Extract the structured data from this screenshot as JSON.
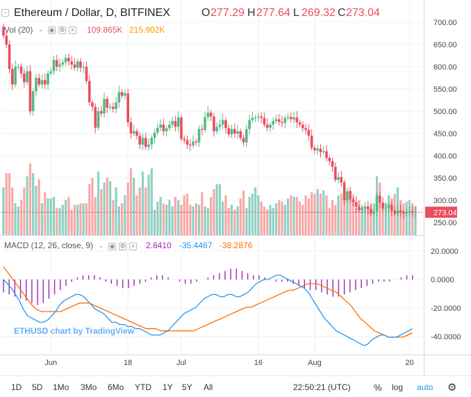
{
  "header": {
    "symbol_title": "Ethereum / Dollar, D, BITFINEX",
    "open_label": "O",
    "open_value": "277.29",
    "high_label": "H",
    "high_value": "277.64",
    "low_label": "L",
    "low_value": "269.32",
    "close_label": "C",
    "close_value": "273.04"
  },
  "volume_legend": {
    "label": "Vol (20)",
    "value1": "109.865K",
    "value2": "215.902K"
  },
  "macd_legend": {
    "label": "MACD (12, 26, close, 9)",
    "hist": "2.8410",
    "macd": "-35.4467",
    "signal": "-38.2876"
  },
  "watermark": "ETHUSD chart by TradingView",
  "price_axis": [
    "700.00",
    "650.00",
    "600.00",
    "550.00",
    "500.00",
    "450.00",
    "400.00",
    "350.00",
    "300.00",
    "250.00"
  ],
  "last_price_tag": "273.04",
  "macd_axis": [
    "20.0000",
    "0.0000",
    "-20.0000",
    "-40.0000"
  ],
  "time_axis": [
    "Jun",
    "18",
    "Jul",
    "16",
    "Aug",
    "20"
  ],
  "toolbar": {
    "ranges": [
      "1D",
      "5D",
      "1Mo",
      "3Mo",
      "6Mo",
      "YTD",
      "1Y",
      "5Y",
      "All"
    ],
    "clock": "22:50:21 (UTC)",
    "percent": "%",
    "log": "log",
    "auto": "auto"
  },
  "colors": {
    "up": "#53b987",
    "down": "#eb4d5c",
    "up_vol": "#8fd0c4",
    "down_vol": "#f7a9a7",
    "macd_line": "#2196f3",
    "signal_line": "#ff6d00",
    "hist": "#9c27b0",
    "accent": "#2196f3"
  },
  "chart_data": [
    {
      "type": "candlestick",
      "title": "Ethereum / Dollar, D, BITFINEX",
      "ylim": [
        230,
        720
      ],
      "x_ticks": [
        {
          "label": "Jun",
          "index": 16
        },
        {
          "label": "18",
          "index": 42
        },
        {
          "label": "Jul",
          "index": 60
        },
        {
          "label": "16",
          "index": 86
        },
        {
          "label": "Aug",
          "index": 105
        },
        {
          "label": "20",
          "index": 137
        }
      ],
      "close": [
        670,
        650,
        595,
        560,
        600,
        600,
        585,
        565,
        590,
        500,
        545,
        575,
        560,
        570,
        560,
        585,
        590,
        615,
        600,
        605,
        610,
        620,
        612,
        605,
        598,
        612,
        598,
        600,
        568,
        520,
        510,
        463,
        500,
        495,
        528,
        508,
        510,
        505,
        520,
        543,
        535,
        540,
        475,
        450,
        455,
        445,
        425,
        440,
        420,
        425,
        440,
        452,
        463,
        470,
        455,
        462,
        470,
        478,
        465,
        486,
        438,
        435,
        425,
        423,
        432,
        430,
        460,
        458,
        487,
        497,
        488,
        455,
        465,
        470,
        480,
        462,
        448,
        460,
        450,
        455,
        440,
        430,
        460,
        480,
        485,
        486,
        488,
        485,
        470,
        463,
        470,
        478,
        482,
        476,
        474,
        485,
        487,
        482,
        486,
        475,
        470,
        462,
        458,
        445,
        418,
        412,
        416,
        408,
        410,
        395,
        388,
        375,
        346,
        352,
        340,
        300,
        320,
        302,
        296,
        285,
        278,
        282,
        286,
        280,
        270,
        275,
        310,
        295,
        282,
        282,
        290,
        276,
        270,
        277,
        273,
        270,
        273,
        275,
        273,
        273
      ],
      "volume_k": [
        150,
        195,
        195,
        150,
        100,
        90,
        110,
        150,
        185,
        225,
        195,
        155,
        175,
        100,
        135,
        115,
        115,
        120,
        85,
        85,
        95,
        110,
        120,
        80,
        95,
        95,
        100,
        100,
        100,
        160,
        180,
        120,
        200,
        145,
        165,
        180,
        170,
        110,
        150,
        90,
        100,
        125,
        165,
        210,
        180,
        125,
        150,
        200,
        150,
        190,
        210,
        80,
        105,
        120,
        100,
        95,
        110,
        90,
        120,
        110,
        95,
        125,
        130,
        95,
        90,
        100,
        95,
        135,
        90,
        85,
        120,
        145,
        160,
        160,
        105,
        125,
        85,
        95,
        80,
        90,
        115,
        140,
        85,
        120,
        130,
        150,
        125,
        105,
        90,
        80,
        95,
        85,
        100,
        110,
        105,
        95,
        115,
        125,
        120,
        120,
        105,
        95,
        125,
        115,
        135,
        130,
        145,
        130,
        140,
        125,
        85,
        110,
        95,
        125,
        130,
        120,
        135,
        140,
        120,
        85,
        110,
        90,
        90,
        90,
        95,
        100,
        185,
        165,
        100,
        100,
        125,
        115,
        130,
        150,
        110,
        100,
        105,
        110,
        100,
        90
      ],
      "macd": [
        0.0,
        -3.0,
        -6.0,
        -10.5,
        -15.0,
        -21.0,
        -25.5,
        -27.0,
        -28.5,
        -30.0,
        -30.0,
        -28.5,
        -25.5,
        -22.5,
        -18.0,
        -15.0,
        -13.5,
        -12.0,
        -10.5,
        -10.5,
        -12.0,
        -15.0,
        -18.0,
        -21.0,
        -22.5,
        -24.0,
        -27.0,
        -30.0,
        -30.0,
        -31.5,
        -31.5,
        -33.0,
        -33.0,
        -34.5,
        -34.5,
        -36.0,
        -37.5,
        -39.0,
        -39.0,
        -39.0,
        -37.5,
        -36.0,
        -33.0,
        -30.0,
        -27.0,
        -24.0,
        -22.5,
        -21.0,
        -19.5,
        -16.5,
        -13.5,
        -12.0,
        -10.5,
        -10.5,
        -12.0,
        -12.0,
        -10.5,
        -10.5,
        -12.0,
        -12.0,
        -10.5,
        -9.0,
        -6.0,
        -3.0,
        -1.5,
        0.0,
        0.0,
        1.5,
        3.0,
        3.0,
        1.5,
        0.0,
        -1.5,
        -3.0,
        -4.5,
        -6.0,
        -9.0,
        -13.5,
        -18.0,
        -22.5,
        -27.0,
        -30.0,
        -33.0,
        -36.0,
        -37.5,
        -39.0,
        -40.5,
        -42.0,
        -43.5,
        -45.0,
        -46.5,
        -45.0,
        -42.0,
        -40.5,
        -39.0,
        -39.0,
        -40.5,
        -40.5,
        -40.5,
        -39.0,
        -37.5,
        -36.0,
        -34.5
      ],
      "signal": [
        9.0,
        4.5,
        0.0,
        -4.5,
        -9.0,
        -13.5,
        -18.0,
        -21.0,
        -22.5,
        -22.5,
        -22.5,
        -22.5,
        -22.5,
        -21.0,
        -19.5,
        -18.0,
        -16.5,
        -16.5,
        -16.5,
        -18.0,
        -19.5,
        -21.0,
        -22.5,
        -24.0,
        -25.5,
        -27.0,
        -28.5,
        -30.0,
        -31.5,
        -33.0,
        -34.5,
        -34.5,
        -34.5,
        -36.0,
        -36.0,
        -36.0,
        -36.0,
        -36.0,
        -36.0,
        -36.0,
        -36.0,
        -34.5,
        -33.0,
        -31.5,
        -30.0,
        -28.5,
        -27.0,
        -25.5,
        -24.0,
        -22.5,
        -21.0,
        -19.5,
        -19.5,
        -18.0,
        -16.5,
        -15.0,
        -13.5,
        -12.0,
        -10.5,
        -9.0,
        -7.5,
        -7.5,
        -6.0,
        -4.5,
        -3.0,
        -3.0,
        -3.0,
        -4.5,
        -6.0,
        -7.5,
        -9.0,
        -12.0,
        -15.0,
        -18.0,
        -22.5,
        -27.0,
        -30.0,
        -33.0,
        -36.0,
        -37.5,
        -39.0,
        -40.5,
        -40.5,
        -40.5,
        -40.5,
        -39.0,
        -37.5
      ],
      "hist": [
        -9.0,
        -10.5,
        -12.0,
        -13.5,
        -15.0,
        -16.5,
        -18.0,
        -16.5,
        -13.5,
        -10.5,
        -7.5,
        -4.5,
        -1.5,
        1.5,
        3.0,
        3.0,
        3.0,
        1.5,
        -1.5,
        -3.0,
        -4.5,
        -6.0,
        -6.0,
        -4.5,
        -3.0,
        -1.5,
        1.5,
        3.0,
        3.0,
        1.5,
        0.0,
        -1.5,
        -3.0,
        -3.0,
        -1.5,
        0.0,
        1.5,
        3.0,
        4.5,
        6.0,
        7.5,
        7.5,
        6.0,
        4.5,
        3.0,
        3.0,
        1.5,
        0.0,
        -1.5,
        -1.5,
        -1.5,
        -3.0,
        -4.5,
        -6.0,
        -7.5,
        -7.5,
        -9.0,
        -10.5,
        -12.0,
        -12.0,
        -10.5,
        -9.0,
        -7.5,
        -6.0,
        -4.5,
        -3.0,
        -1.5,
        -1.5,
        -1.5,
        0.0,
        1.5,
        3.0,
        3.0
      ]
    }
  ]
}
